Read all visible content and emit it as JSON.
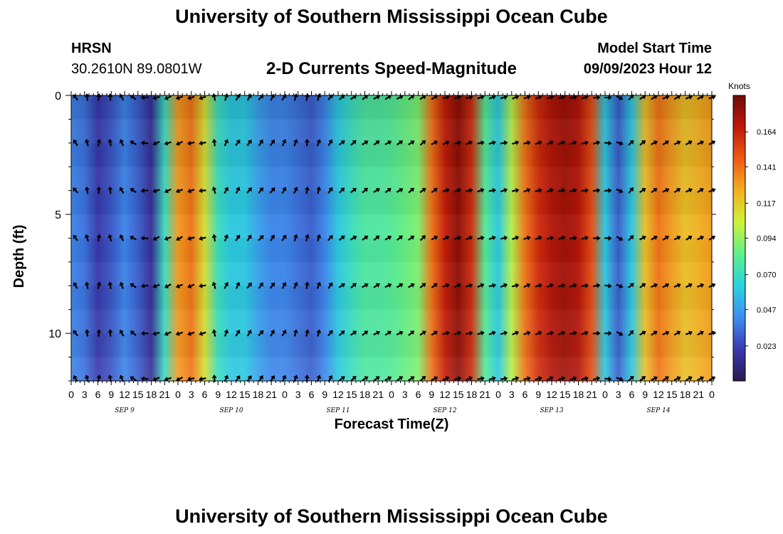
{
  "page": {
    "title_top": "University of Southern Mississippi Ocean Cube",
    "title_bottom": "University of Southern Mississippi Ocean Cube",
    "station": "HRSN",
    "coordinates": "30.2610N  89.0801W",
    "model_start_label": "Model Start Time",
    "model_start_value": "09/09/2023 Hour 12"
  },
  "chart_data": {
    "type": "heatmap",
    "title": "2-D Currents Speed-Magnitude",
    "xlabel": "Forecast Time(Z)",
    "ylabel": "Depth (ft)",
    "y_ticks": [
      "0",
      "5",
      "10"
    ],
    "y_range": [
      0,
      12
    ],
    "y_inverted": true,
    "x_range_hours": [
      0,
      144
    ],
    "x_tick_labels": [
      "0",
      "3",
      "6",
      "9",
      "12",
      "15",
      "18",
      "21",
      "0",
      "3",
      "6",
      "9",
      "12",
      "15",
      "18",
      "21",
      "0",
      "3",
      "6",
      "9",
      "12",
      "15",
      "18",
      "21",
      "0",
      "3",
      "6",
      "9",
      "12",
      "15",
      "18",
      "21",
      "0",
      "3",
      "6",
      "9",
      "12",
      "15",
      "18",
      "21",
      "0",
      "3",
      "6",
      "9",
      "12",
      "15",
      "18",
      "21",
      "0"
    ],
    "day_labels": [
      "SEP 9",
      "SEP 10",
      "SEP 11",
      "SEP 12",
      "SEP 13",
      "SEP 14"
    ],
    "colorbar": {
      "units": "Knots",
      "tick_labels": [
        "0.023",
        "0.047",
        "0.070",
        "0.094",
        "0.117",
        "0.141",
        "0.164"
      ],
      "range": [
        0.0,
        0.188
      ],
      "colormap": [
        "#2c1850",
        "#3a3ab0",
        "#3d8ef2",
        "#2ad3df",
        "#5ef08a",
        "#cdf23a",
        "#f4b022",
        "#ee5a14",
        "#c0180a",
        "#6e0a08"
      ]
    },
    "speed_profile": [
      {
        "hour": 0,
        "speed": 0.04
      },
      {
        "hour": 3,
        "speed": 0.035
      },
      {
        "hour": 6,
        "speed": 0.02
      },
      {
        "hour": 9,
        "speed": 0.028
      },
      {
        "hour": 12,
        "speed": 0.04
      },
      {
        "hour": 15,
        "speed": 0.03
      },
      {
        "hour": 18,
        "speed": 0.015
      },
      {
        "hour": 21,
        "speed": 0.07
      },
      {
        "hour": 24,
        "speed": 0.13
      },
      {
        "hour": 27,
        "speed": 0.14
      },
      {
        "hour": 30,
        "speed": 0.11
      },
      {
        "hour": 33,
        "speed": 0.07
      },
      {
        "hour": 36,
        "speed": 0.06
      },
      {
        "hour": 39,
        "speed": 0.06
      },
      {
        "hour": 42,
        "speed": 0.048
      },
      {
        "hour": 45,
        "speed": 0.04
      },
      {
        "hour": 48,
        "speed": 0.04
      },
      {
        "hour": 51,
        "speed": 0.035
      },
      {
        "hour": 54,
        "speed": 0.03
      },
      {
        "hour": 57,
        "speed": 0.04
      },
      {
        "hour": 60,
        "speed": 0.06
      },
      {
        "hour": 63,
        "speed": 0.07
      },
      {
        "hour": 66,
        "speed": 0.078
      },
      {
        "hour": 69,
        "speed": 0.078
      },
      {
        "hour": 72,
        "speed": 0.08
      },
      {
        "hour": 75,
        "speed": 0.085
      },
      {
        "hour": 78,
        "speed": 0.09
      },
      {
        "hour": 81,
        "speed": 0.14
      },
      {
        "hour": 84,
        "speed": 0.165
      },
      {
        "hour": 87,
        "speed": 0.18
      },
      {
        "hour": 90,
        "speed": 0.16
      },
      {
        "hour": 93,
        "speed": 0.08
      },
      {
        "hour": 96,
        "speed": 0.06
      },
      {
        "hour": 99,
        "speed": 0.1
      },
      {
        "hour": 102,
        "speed": 0.14
      },
      {
        "hour": 105,
        "speed": 0.16
      },
      {
        "hour": 108,
        "speed": 0.17
      },
      {
        "hour": 111,
        "speed": 0.175
      },
      {
        "hour": 114,
        "speed": 0.17
      },
      {
        "hour": 117,
        "speed": 0.15
      },
      {
        "hour": 120,
        "speed": 0.06
      },
      {
        "hour": 123,
        "speed": 0.03
      },
      {
        "hour": 126,
        "speed": 0.06
      },
      {
        "hour": 129,
        "speed": 0.12
      },
      {
        "hour": 132,
        "speed": 0.14
      },
      {
        "hour": 135,
        "speed": 0.13
      },
      {
        "hour": 138,
        "speed": 0.12
      },
      {
        "hour": 141,
        "speed": 0.125
      },
      {
        "hour": 144,
        "speed": 0.13
      }
    ],
    "arrow_depths_ft": [
      0,
      2,
      4,
      6,
      8,
      10,
      12
    ],
    "arrow_direction_deg": [
      {
        "hour": 0,
        "dir": 315
      },
      {
        "hour": 6,
        "dir": 10
      },
      {
        "hour": 12,
        "dir": 330
      },
      {
        "hour": 18,
        "dir": 250
      },
      {
        "hour": 24,
        "dir": 245
      },
      {
        "hour": 30,
        "dir": 260
      },
      {
        "hour": 33,
        "dir": 20
      },
      {
        "hour": 42,
        "dir": 40
      },
      {
        "hour": 48,
        "dir": 30
      },
      {
        "hour": 54,
        "dir": 5
      },
      {
        "hour": 60,
        "dir": 50
      },
      {
        "hour": 72,
        "dir": 60
      },
      {
        "hour": 80,
        "dir": 50
      },
      {
        "hour": 84,
        "dir": 70
      },
      {
        "hour": 96,
        "dir": 75
      },
      {
        "hour": 108,
        "dir": 70
      },
      {
        "hour": 120,
        "dir": 85
      },
      {
        "hour": 123,
        "dir": 120
      },
      {
        "hour": 126,
        "dir": 40
      },
      {
        "hour": 129,
        "dir": 60
      },
      {
        "hour": 144,
        "dir": 65
      }
    ]
  }
}
